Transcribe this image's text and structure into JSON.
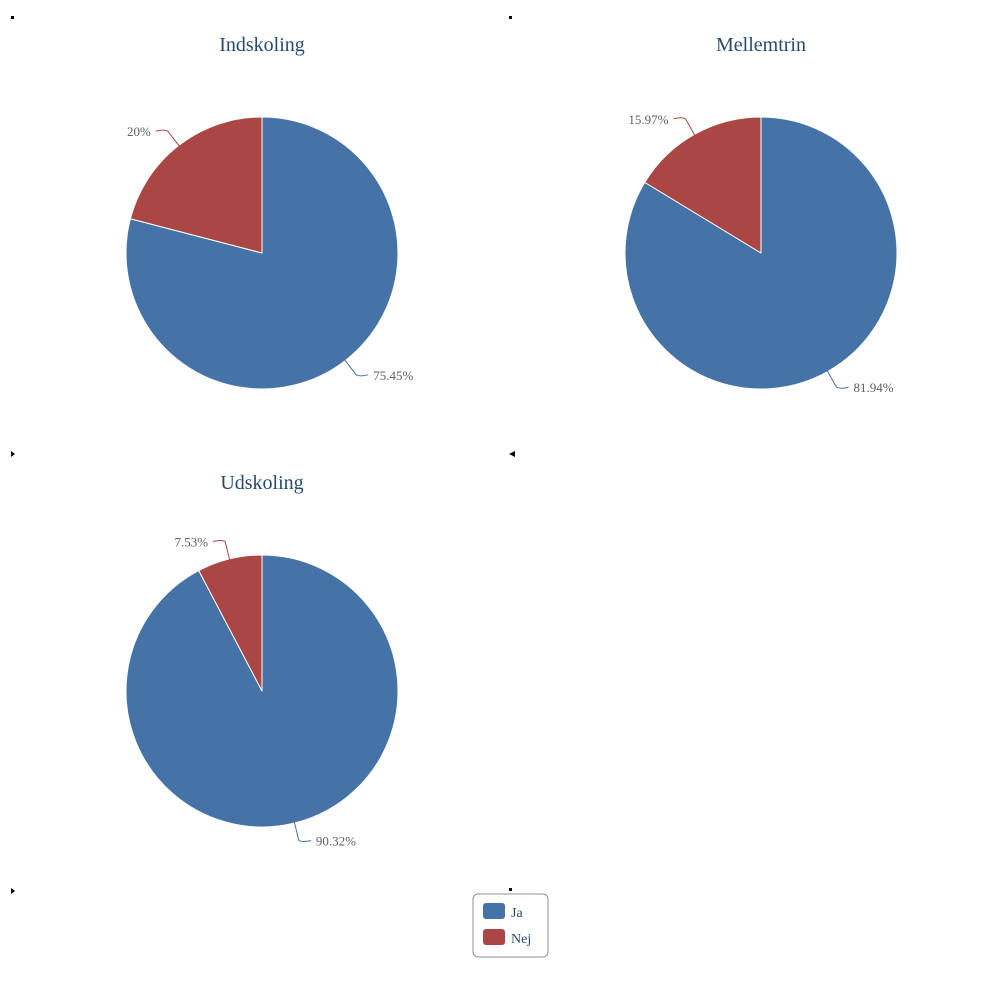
{
  "chart_data": [
    {
      "type": "pie",
      "title": "Indskoling",
      "slices": [
        {
          "name": "Ja",
          "value": 75.45,
          "label": "75.45%"
        },
        {
          "name": "Nej",
          "value": 20,
          "label": "20%"
        }
      ]
    },
    {
      "type": "pie",
      "title": "Mellemtrin",
      "slices": [
        {
          "name": "Ja",
          "value": 81.94,
          "label": "81.94%"
        },
        {
          "name": "Nej",
          "value": 15.97,
          "label": "15.97%"
        }
      ]
    },
    {
      "type": "pie",
      "title": "Udskoling",
      "slices": [
        {
          "name": "Ja",
          "value": 90.32,
          "label": "90.32%"
        },
        {
          "name": "Nej",
          "value": 7.53,
          "label": "7.53%"
        }
      ]
    }
  ],
  "legend": {
    "placement": "bottom-center",
    "items": [
      {
        "name": "Ja",
        "color": "#4572a7"
      },
      {
        "name": "Nej",
        "color": "#aa4643"
      }
    ]
  },
  "colors": {
    "Ja": "#4572a7",
    "Nej": "#aa4643",
    "title": "#274b6d",
    "label": "#606060"
  }
}
